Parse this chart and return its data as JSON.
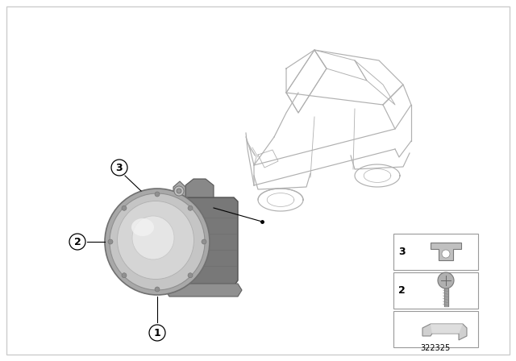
{
  "background_color": "#ffffff",
  "part_number": "322325",
  "fig_width": 6.4,
  "fig_height": 4.48,
  "lc": "#bbbbbb",
  "lc2": "#999999"
}
